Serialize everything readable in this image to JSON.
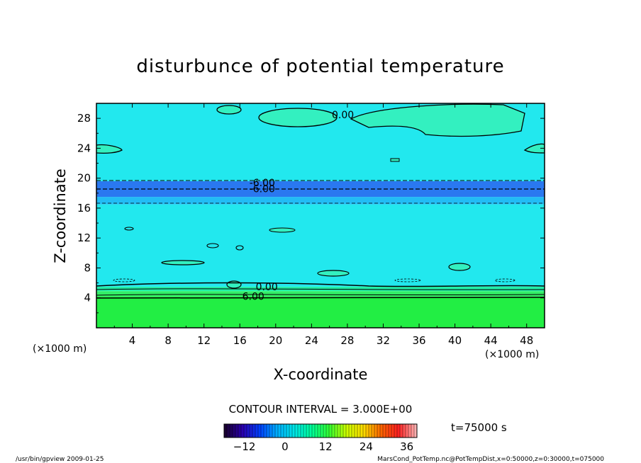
{
  "chart_data": {
    "type": "heatmap",
    "title": "disturbunce of potential temperature",
    "xlabel": "X-coordinate",
    "ylabel": "Z-coordinate",
    "x_unit_left": "(×1000 m)",
    "x_unit_right": "(×1000 m)",
    "xlim": [
      0,
      50
    ],
    "ylim": [
      0,
      30
    ],
    "xticks": [
      4,
      8,
      12,
      16,
      20,
      24,
      28,
      32,
      36,
      40,
      44,
      48
    ],
    "yticks": [
      4,
      8,
      12,
      16,
      20,
      24,
      28
    ],
    "contour_interval_text": "CONTOUR INTERVAL = 3.000E+00",
    "contour_interval": 3.0,
    "time_label": "t=75000 s",
    "colorbar": {
      "min": -18,
      "max": 39,
      "ticks": [
        -12,
        0,
        12,
        24,
        36
      ],
      "stops": [
        "#1a0033",
        "#2a00b0",
        "#0040ff",
        "#00b0ff",
        "#00e6e6",
        "#00ff99",
        "#33ff33",
        "#ccff00",
        "#ffdd00",
        "#ff6600",
        "#ff2020",
        "#ffb0b0"
      ]
    },
    "layers": [
      {
        "z": [
          0,
          4.2
        ],
        "value": 9,
        "color": "#22ee44"
      },
      {
        "z": [
          4.2,
          4.9
        ],
        "value": 7.5,
        "color": "#33ee66"
      },
      {
        "z": [
          4.9,
          5.5
        ],
        "value": 4.5,
        "color": "#22f0a8"
      },
      {
        "z": [
          5.5,
          16.5
        ],
        "value": 0,
        "color": "#22e8ee"
      },
      {
        "z": [
          16.5,
          17.5
        ],
        "value": -4,
        "color": "#22bcf5"
      },
      {
        "z": [
          17.5,
          19.6
        ],
        "value": -9,
        "color": "#2a78f0"
      },
      {
        "z": [
          19.6,
          30
        ],
        "value": 0,
        "color": "#22e8ee"
      }
    ],
    "contour_labels": [
      {
        "x": 27.5,
        "z": 28.5,
        "text": "0.00"
      },
      {
        "x": 18.5,
        "z": 19.4,
        "text": "-6.00"
      },
      {
        "x": 18.5,
        "z": 18.6,
        "text": "-6.00"
      },
      {
        "x": 19.0,
        "z": 5.5,
        "text": "0.00"
      },
      {
        "x": 17.5,
        "z": 4.2,
        "text": "6.00"
      }
    ]
  },
  "footer": {
    "left": "/usr/bin/gpview   2009-01-25",
    "right": "MarsCond_PotTemp.nc@PotTempDist,x=0:50000,z=0:30000,t=075000"
  }
}
